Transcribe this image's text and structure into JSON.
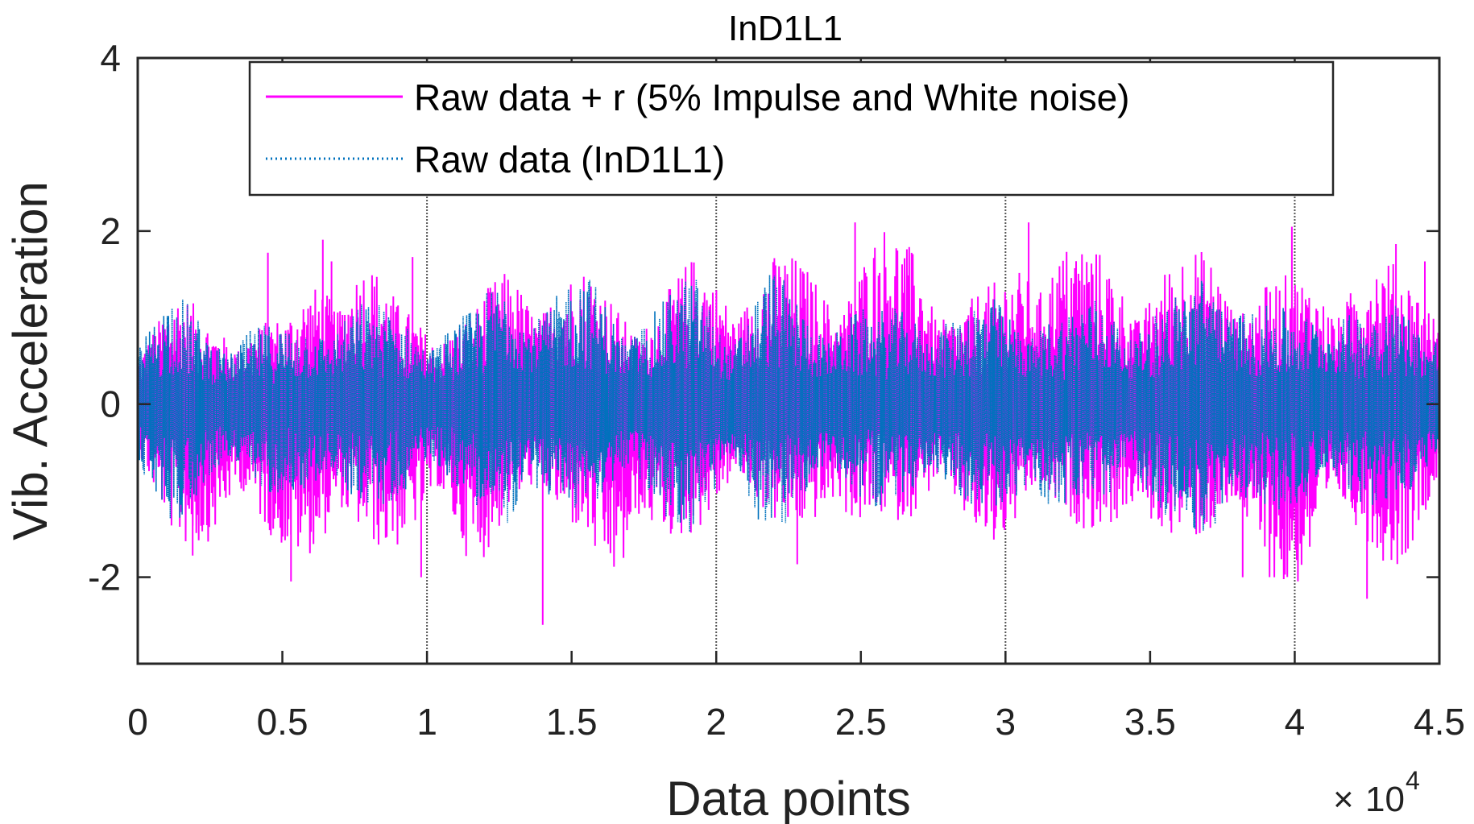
{
  "chart_data": {
    "type": "line",
    "title": "InD1L1",
    "xlabel": "Data points",
    "ylabel": "Vib. Acceleration",
    "x_multiplier": {
      "base": "10",
      "exponent": "4"
    },
    "xlim": [
      0,
      45000
    ],
    "ylim": [
      -3,
      4
    ],
    "x_ticks": [
      0,
      5000,
      10000,
      15000,
      20000,
      25000,
      30000,
      35000,
      40000,
      45000
    ],
    "x_tick_labels": [
      "0",
      "0.5",
      "1",
      "1.5",
      "2",
      "2.5",
      "3",
      "3.5",
      "4",
      "4.5"
    ],
    "y_ticks": [
      -2,
      0,
      2,
      4
    ],
    "y_tick_labels": [
      "-2",
      "0",
      "2",
      "4"
    ],
    "vertical_lines": [
      10000,
      20000,
      30000,
      40000
    ],
    "legend_position": "top",
    "series": [
      {
        "name": "Raw data + r (5% Impulse and White noise)",
        "color": "#ff00ff",
        "style": "solid",
        "envelope_upper": [
          0.9,
          1.35,
          1.0,
          1.1,
          1.0,
          1.75,
          1.9,
          1.2,
          1.1,
          1.1,
          1.7,
          1.6,
          1.6,
          1.3,
          1.3,
          1.75,
          1.6,
          1.8,
          1.7,
          1.65,
          2.1,
          2.0,
          1.2,
          1.4,
          2.1,
          2.0,
          1.8,
          1.6,
          1.8,
          1.9,
          1.5,
          1.5,
          1.6,
          1.8,
          1.6,
          1.6
        ],
        "envelope_lower": [
          -1.0,
          -1.6,
          -1.75,
          -1.5,
          -1.7,
          -2.05,
          -1.7,
          -1.7,
          -1.6,
          -2.0,
          -1.3,
          -1.5,
          -1.5,
          -2.55,
          -1.7,
          -1.5,
          -1.3,
          -1.4,
          -1.5,
          -1.85,
          -1.3,
          -1.5,
          -1.4,
          -1.7,
          -1.6,
          -1.4,
          -1.5,
          -1.9,
          -1.5,
          -1.7,
          -2.05,
          -2.25,
          -1.8,
          -1.7,
          -1.95,
          -1.5
        ],
        "impulse_peaks": [
          {
            "x": 4500,
            "y": 1.75
          },
          {
            "x": 6400,
            "y": 1.9
          },
          {
            "x": 6700,
            "y": 1.65
          },
          {
            "x": 9500,
            "y": 1.7
          },
          {
            "x": 5300,
            "y": -2.05
          },
          {
            "x": 14000,
            "y": -2.55
          },
          {
            "x": 24800,
            "y": 2.1
          },
          {
            "x": 30800,
            "y": 2.1
          },
          {
            "x": 39900,
            "y": 2.05
          },
          {
            "x": 42500,
            "y": -2.25
          },
          {
            "x": 43500,
            "y": 1.85
          },
          {
            "x": 44500,
            "y": 1.65
          },
          {
            "x": 38200,
            "y": -2.0
          },
          {
            "x": 22800,
            "y": -1.85
          },
          {
            "x": 1900,
            "y": -1.75
          },
          {
            "x": 9800,
            "y": -2.0
          }
        ]
      },
      {
        "name": "Raw data (InD1L1)",
        "color": "#0072bd",
        "style": "dotted",
        "envelope_upper": [
          0.9,
          1.35,
          0.9,
          1.0,
          0.9,
          1.2,
          1.25,
          1.1,
          1.0,
          1.1,
          1.7,
          1.3,
          1.6,
          1.2,
          1.2,
          1.6,
          1.0,
          1.6,
          1.2,
          1.2,
          1.1,
          1.3,
          1.1,
          1.3,
          1.2,
          1.1,
          1.4,
          1.1,
          1.3,
          1.9,
          1.2,
          1.1,
          1.4,
          1.1,
          1.3,
          1.1
        ],
        "envelope_lower": [
          -1.0,
          -1.4,
          -1.0,
          -1.1,
          -1.0,
          -1.3,
          -1.2,
          -1.2,
          -1.0,
          -1.1,
          -1.7,
          -1.3,
          -1.2,
          -1.2,
          -1.3,
          -1.6,
          -1.1,
          -1.6,
          -1.2,
          -1.1,
          -1.2,
          -1.3,
          -1.1,
          -1.3,
          -1.6,
          -1.2,
          -1.3,
          -1.2,
          -1.4,
          -1.9,
          -1.2,
          -1.3,
          -1.2,
          -1.2,
          -1.3,
          -1.2
        ]
      }
    ]
  }
}
